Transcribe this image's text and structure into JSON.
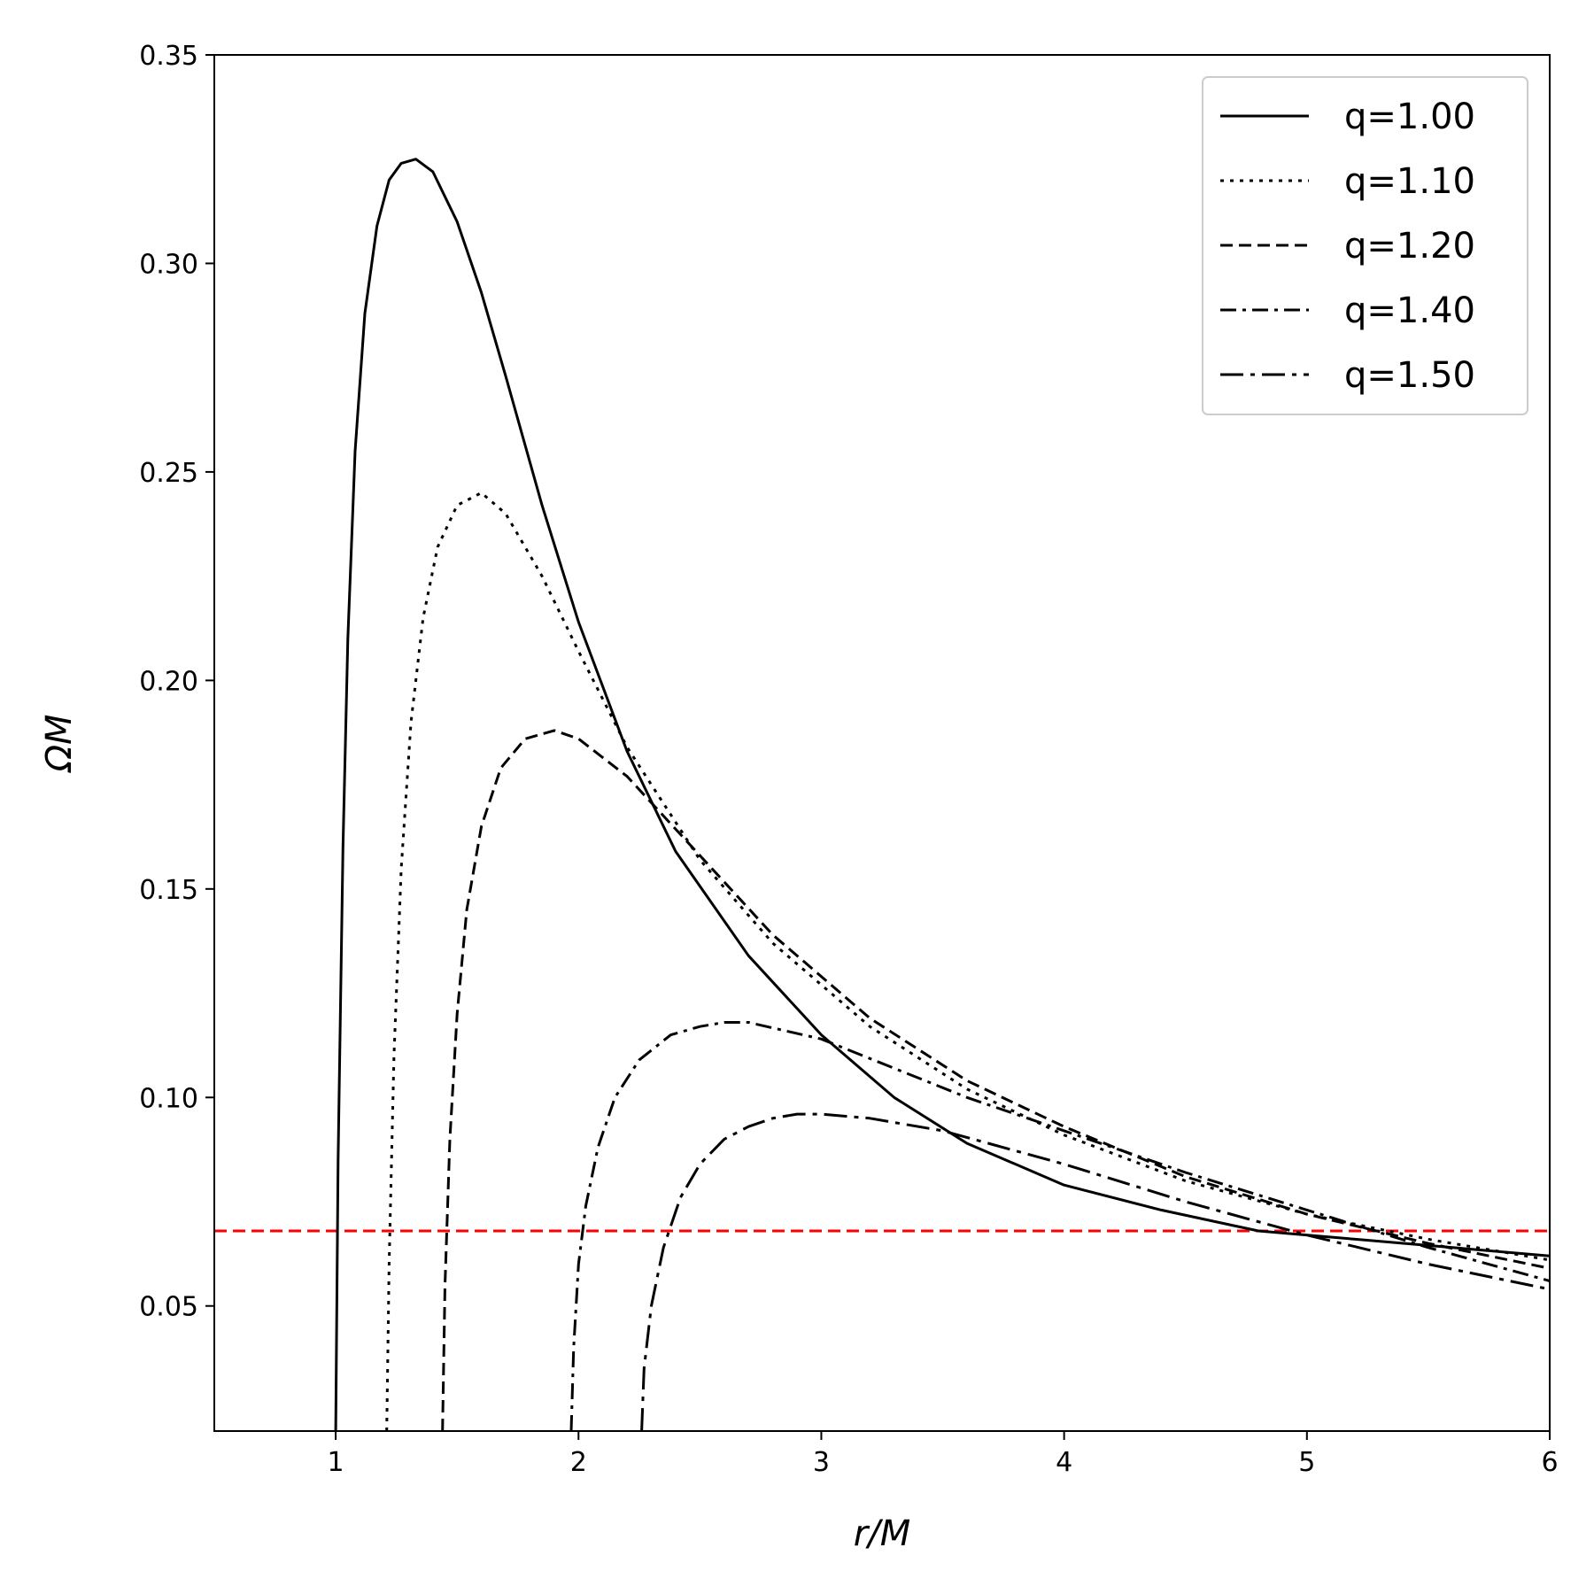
{
  "chart_data": {
    "type": "line",
    "title": "",
    "xlabel": "r/M",
    "ylabel": "ΩM",
    "xlim": [
      0.5,
      6
    ],
    "ylim": [
      0.02,
      0.35
    ],
    "xticks": [
      1,
      2,
      3,
      4,
      5,
      6
    ],
    "yticks": [
      0.05,
      0.1,
      0.15,
      0.2,
      0.25,
      0.3,
      0.35
    ],
    "xtick_labels": [
      "1",
      "2",
      "3",
      "4",
      "5",
      "6"
    ],
    "ytick_labels": [
      "0.05",
      "0.10",
      "0.15",
      "0.20",
      "0.25",
      "0.30",
      "0.35"
    ],
    "grid": false,
    "legend_position": "top-right",
    "series": [
      {
        "name": "q=1.00",
        "style": "solid",
        "x": [
          1.0,
          1.01,
          1.03,
          1.05,
          1.08,
          1.12,
          1.17,
          1.22,
          1.27,
          1.33,
          1.4,
          1.5,
          1.6,
          1.7,
          1.85,
          2.0,
          2.2,
          2.4,
          2.7,
          3.0,
          3.3,
          3.6,
          4.0,
          4.4,
          4.8,
          5.2,
          5.6,
          6.0
        ],
        "y": [
          0.02,
          0.085,
          0.16,
          0.21,
          0.255,
          0.288,
          0.309,
          0.32,
          0.324,
          0.325,
          0.322,
          0.31,
          0.293,
          0.273,
          0.242,
          0.214,
          0.183,
          0.159,
          0.134,
          0.115,
          0.1,
          0.089,
          0.079,
          0.073,
          0.068,
          0.066,
          0.064,
          0.062
        ]
      },
      {
        "name": "q=1.10",
        "style": "dotted",
        "x": [
          1.21,
          1.22,
          1.24,
          1.27,
          1.31,
          1.36,
          1.42,
          1.5,
          1.6,
          1.7,
          1.85,
          2.0,
          2.2,
          2.5,
          2.8,
          3.2,
          3.6,
          4.0,
          4.5,
          5.0,
          5.5,
          6.0
        ],
        "y": [
          0.02,
          0.06,
          0.11,
          0.155,
          0.19,
          0.215,
          0.232,
          0.242,
          0.245,
          0.24,
          0.225,
          0.207,
          0.184,
          0.157,
          0.137,
          0.117,
          0.102,
          0.091,
          0.08,
          0.072,
          0.066,
          0.061
        ]
      },
      {
        "name": "q=1.20",
        "style": "dashed",
        "x": [
          1.44,
          1.45,
          1.47,
          1.5,
          1.54,
          1.6,
          1.68,
          1.78,
          1.9,
          2.0,
          2.2,
          2.5,
          2.8,
          3.2,
          3.6,
          4.0,
          4.5,
          5.0,
          5.5,
          6.0
        ],
        "y": [
          0.02,
          0.055,
          0.09,
          0.12,
          0.145,
          0.165,
          0.179,
          0.186,
          0.188,
          0.186,
          0.177,
          0.158,
          0.139,
          0.119,
          0.104,
          0.093,
          0.081,
          0.072,
          0.065,
          0.059
        ]
      },
      {
        "name": "q=1.40",
        "style": "dashdot",
        "x": [
          1.97,
          1.98,
          2.0,
          2.03,
          2.08,
          2.15,
          2.25,
          2.38,
          2.5,
          2.6,
          2.7,
          3.0,
          3.3,
          3.6,
          4.0,
          4.5,
          5.0,
          5.5,
          6.0
        ],
        "y": [
          0.02,
          0.04,
          0.06,
          0.074,
          0.088,
          0.1,
          0.109,
          0.115,
          0.117,
          0.118,
          0.118,
          0.114,
          0.107,
          0.1,
          0.092,
          0.082,
          0.073,
          0.064,
          0.056
        ]
      },
      {
        "name": "q=1.50",
        "style": "longdashdot",
        "x": [
          2.26,
          2.27,
          2.3,
          2.35,
          2.42,
          2.5,
          2.6,
          2.7,
          2.8,
          2.9,
          3.0,
          3.2,
          3.5,
          4.0,
          4.5,
          5.0,
          5.5,
          6.0
        ],
        "y": [
          0.02,
          0.035,
          0.05,
          0.064,
          0.076,
          0.084,
          0.09,
          0.093,
          0.095,
          0.096,
          0.096,
          0.095,
          0.092,
          0.084,
          0.075,
          0.067,
          0.06,
          0.054
        ]
      }
    ],
    "reference_line": {
      "y": 0.068,
      "color": "#ff0000",
      "style": "dashed"
    }
  }
}
